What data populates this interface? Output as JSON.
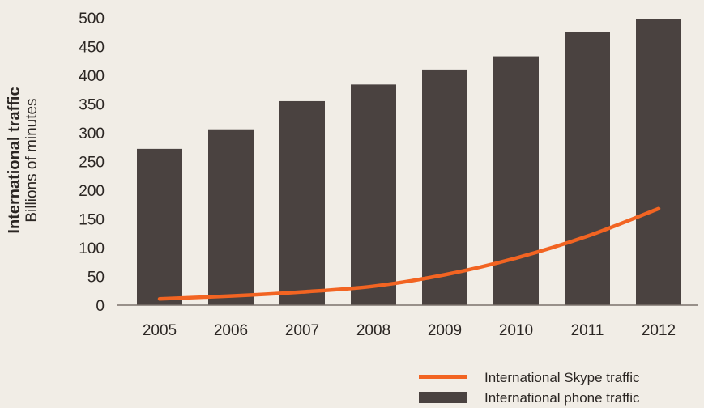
{
  "chart_data": {
    "type": "bar",
    "y_title": "International traffic",
    "y_subtitle": "Billions of minutes",
    "categories": [
      "2005",
      "2006",
      "2007",
      "2008",
      "2009",
      "2010",
      "2011",
      "2012"
    ],
    "yticks": [
      "0",
      "50",
      "100",
      "150",
      "200",
      "250",
      "300",
      "350",
      "400",
      "450",
      "500"
    ],
    "ylim": [
      0,
      500
    ],
    "series": [
      {
        "name": "International phone traffic",
        "kind": "bar",
        "color": "#4a4240",
        "values": [
          272,
          306,
          355,
          384,
          410,
          433,
          475,
          498
        ]
      },
      {
        "name": "International Skype traffic",
        "kind": "line",
        "color": "#f26422",
        "values": [
          11,
          16,
          23,
          33,
          53,
          82,
          120,
          168
        ]
      }
    ],
    "legend": [
      {
        "label": "International Skype traffic",
        "kind": "line",
        "color": "#f26422"
      },
      {
        "label": "International phone traffic",
        "kind": "bar",
        "color": "#4a4240"
      }
    ],
    "legend_position": "bottom-right",
    "grid": false
  }
}
